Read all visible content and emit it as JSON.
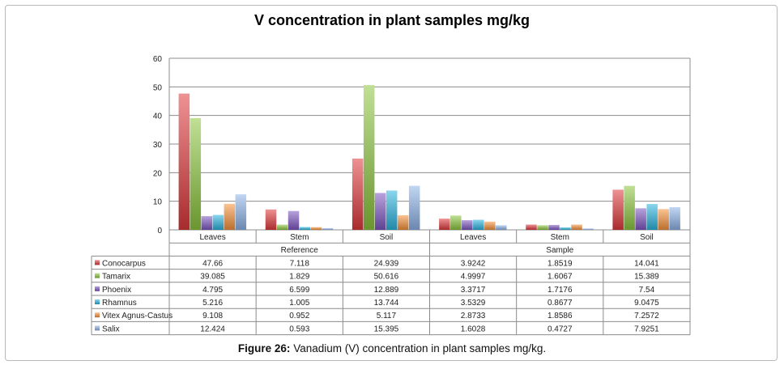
{
  "caption": {
    "label": "Figure 26:",
    "text": "Vanadium (V) concentration in plant samples mg/kg."
  },
  "chart_data": {
    "type": "bar",
    "title": "V concentration in plant samples mg/kg",
    "xlabel": "",
    "ylabel": "",
    "ylim": [
      0,
      60
    ],
    "yticks": [
      0,
      10,
      20,
      30,
      40,
      50,
      60
    ],
    "grid": true,
    "legend": "data-table",
    "groups": [
      "Reference",
      "Sample"
    ],
    "categories": [
      "Leaves",
      "Stem",
      "Soil",
      "Leaves",
      "Stem",
      "Soil"
    ],
    "category_group": [
      0,
      0,
      0,
      1,
      1,
      1
    ],
    "series": [
      {
        "name": "Conocarpus",
        "color": "#e0393c",
        "values": [
          47.66,
          7.118,
          24.939,
          3.9242,
          1.8519,
          14.041
        ],
        "labels": [
          "47.66",
          "7.118",
          "24.939",
          "3.9242",
          "1.8519",
          "14.041"
        ]
      },
      {
        "name": "Tamarix",
        "color": "#8dc63f",
        "values": [
          39.085,
          1.829,
          50.616,
          4.9997,
          1.6067,
          15.389
        ],
        "labels": [
          "39.085",
          "1.829",
          "50.616",
          "4.9997",
          "1.6067",
          "15.389"
        ]
      },
      {
        "name": "Phoenix",
        "color": "#7e57c2",
        "values": [
          4.795,
          6.599,
          12.889,
          3.3717,
          1.7176,
          7.54
        ],
        "labels": [
          "4.795",
          "6.599",
          "12.889",
          "3.3717",
          "1.7176",
          "7.54"
        ]
      },
      {
        "name": "Rhamnus",
        "color": "#2bb5e0",
        "values": [
          5.216,
          1.005,
          13.744,
          3.5329,
          0.8677,
          9.0475
        ],
        "labels": [
          "5.216",
          "1.005",
          "13.744",
          "3.5329",
          "0.8677",
          "9.0475"
        ]
      },
      {
        "name": "Vitex Agnus-Castus",
        "color": "#f7923a",
        "values": [
          9.108,
          0.952,
          5.117,
          2.8733,
          1.8586,
          7.2572
        ],
        "labels": [
          "9.108",
          "0.952",
          "5.117",
          "2.8733",
          "1.8586",
          "7.2572"
        ]
      },
      {
        "name": "Salix",
        "color": "#8fb4ea",
        "values": [
          12.424,
          0.593,
          15.395,
          1.6028,
          0.4727,
          7.9251
        ],
        "labels": [
          "12.424",
          "0.593",
          "15.395",
          "1.6028",
          "0.4727",
          "7.9251"
        ]
      }
    ]
  }
}
